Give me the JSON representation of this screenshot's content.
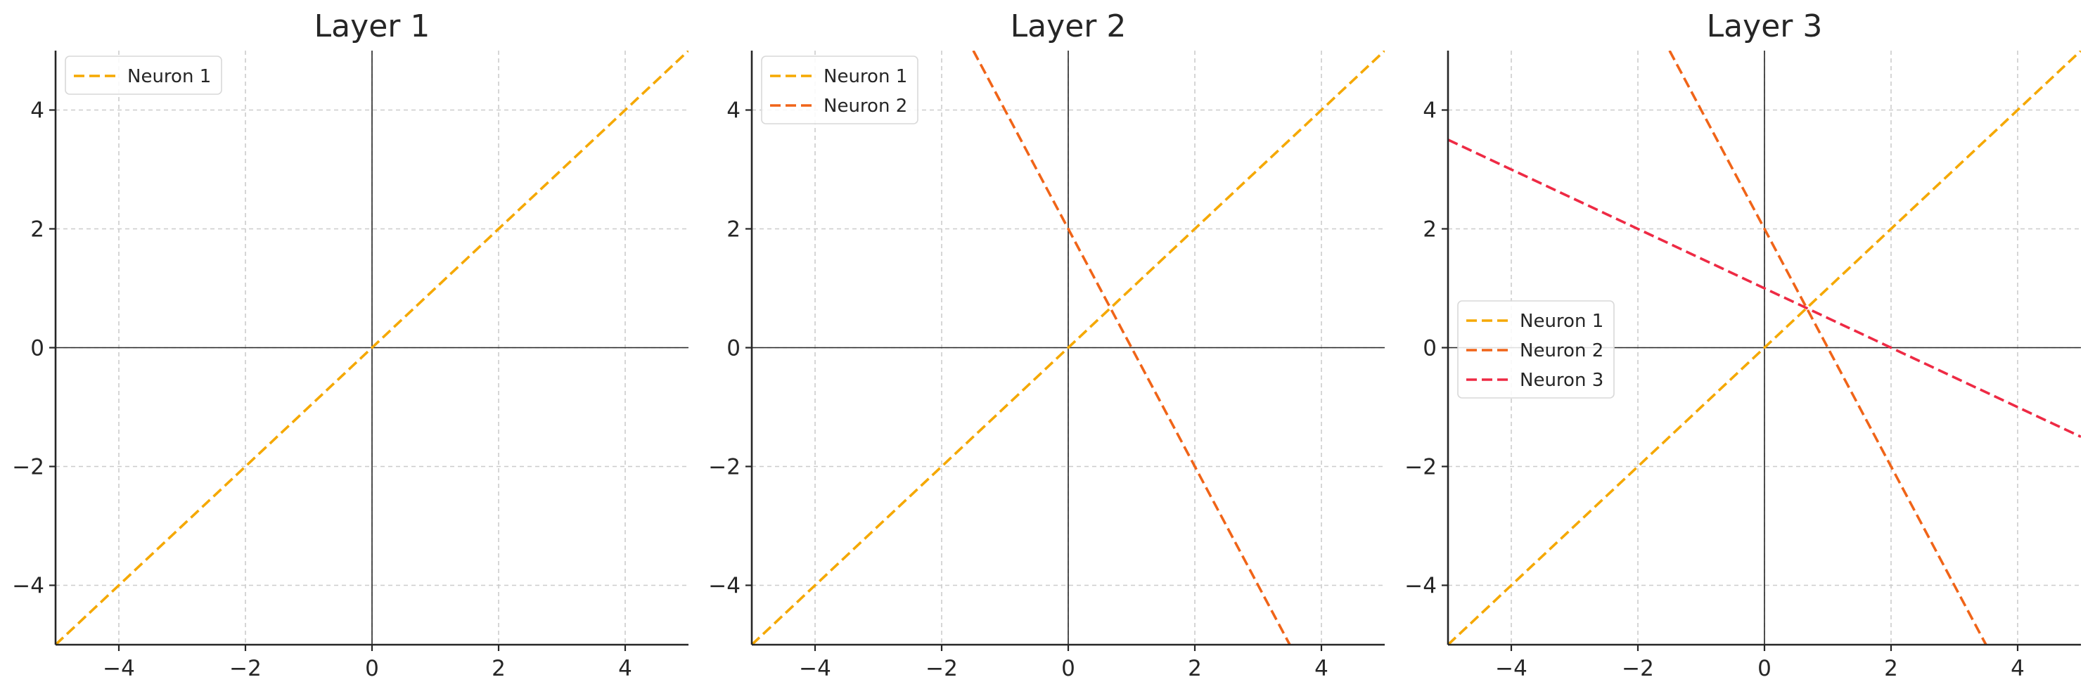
{
  "chart_data": [
    {
      "type": "line",
      "title": "Layer 1",
      "xlabel": "",
      "ylabel": "",
      "xlim": [
        -5,
        5
      ],
      "ylim": [
        -5,
        5
      ],
      "xticks": [
        -4,
        -2,
        0,
        2,
        4
      ],
      "yticks": [
        -4,
        -2,
        0,
        2,
        4
      ],
      "xtick_labels": [
        "−4",
        "−2",
        "0",
        "2",
        "4"
      ],
      "ytick_labels": [
        "−4",
        "−2",
        "0",
        "2",
        "4"
      ],
      "grid": true,
      "legend_position": "top-left",
      "series": [
        {
          "name": "Neuron 1",
          "color": "#f5a800",
          "style": "dashed",
          "x": [
            -5,
            5
          ],
          "y": [
            -5,
            5
          ]
        }
      ]
    },
    {
      "type": "line",
      "title": "Layer 2",
      "xlabel": "",
      "ylabel": "",
      "xlim": [
        -5,
        5
      ],
      "ylim": [
        -5,
        5
      ],
      "xticks": [
        -4,
        -2,
        0,
        2,
        4
      ],
      "yticks": [
        -4,
        -2,
        0,
        2,
        4
      ],
      "xtick_labels": [
        "−4",
        "−2",
        "0",
        "2",
        "4"
      ],
      "ytick_labels": [
        "−4",
        "−2",
        "0",
        "2",
        "4"
      ],
      "grid": true,
      "legend_position": "top-left",
      "series": [
        {
          "name": "Neuron 1",
          "color": "#f5a800",
          "style": "dashed",
          "x": [
            -5,
            5
          ],
          "y": [
            -5,
            5
          ]
        },
        {
          "name": "Neuron 2",
          "color": "#f06418",
          "style": "dashed",
          "x": [
            -1.5,
            3.5
          ],
          "y": [
            5,
            -5
          ]
        }
      ]
    },
    {
      "type": "line",
      "title": "Layer 3",
      "xlabel": "",
      "ylabel": "",
      "xlim": [
        -5,
        5
      ],
      "ylim": [
        -5,
        5
      ],
      "xticks": [
        -4,
        -2,
        0,
        2,
        4
      ],
      "yticks": [
        -4,
        -2,
        0,
        2,
        4
      ],
      "xtick_labels": [
        "−4",
        "−2",
        "0",
        "2",
        "4"
      ],
      "ytick_labels": [
        "−4",
        "−2",
        "0",
        "2",
        "4"
      ],
      "grid": true,
      "legend_position": "center-left",
      "series": [
        {
          "name": "Neuron 1",
          "color": "#f5a800",
          "style": "dashed",
          "x": [
            -5,
            5
          ],
          "y": [
            -5,
            5
          ]
        },
        {
          "name": "Neuron 2",
          "color": "#f06418",
          "style": "dashed",
          "x": [
            -1.5,
            3.5
          ],
          "y": [
            5,
            -5
          ]
        },
        {
          "name": "Neuron 3",
          "color": "#ee2a44",
          "style": "dashed",
          "x": [
            -5,
            5
          ],
          "y": [
            3.5,
            -1.5
          ]
        }
      ]
    }
  ]
}
